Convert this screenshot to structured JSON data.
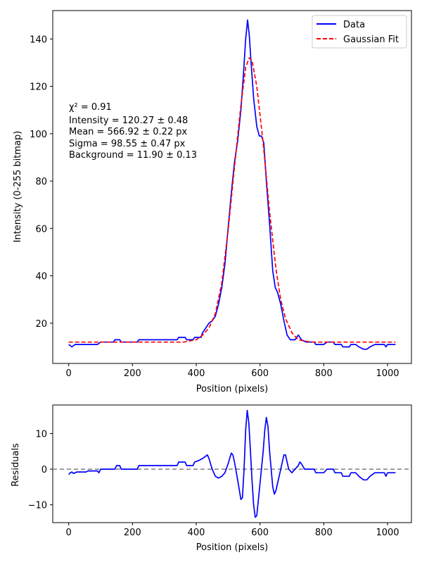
{
  "chart_data": [
    {
      "type": "line",
      "xlabel": "Position (pixels)",
      "ylabel": "Intensity (0-255 bitmap)",
      "xlim": [
        -50,
        1075
      ],
      "ylim": [
        3,
        152
      ],
      "x_ticks": [
        0,
        200,
        400,
        600,
        800,
        1000
      ],
      "y_ticks": [
        20,
        40,
        60,
        80,
        100,
        120,
        140
      ],
      "grid": false,
      "legend_position": "top-right",
      "annotation": {
        "chi2": "χ² = 0.91",
        "intensity": "Intensity = 120.27 ± 0.48",
        "mean": "Mean = 566.92 ± 0.22 px",
        "sigma": "Sigma = 98.55 ± 0.47 px",
        "background": "Background = 11.90 ± 0.13"
      },
      "series": [
        {
          "name": "Data",
          "color": "#0000ff",
          "style": "solid",
          "points": [
            [
              0,
              11
            ],
            [
              10,
              10
            ],
            [
              20,
              11
            ],
            [
              60,
              11
            ],
            [
              90,
              11
            ],
            [
              100,
              12
            ],
            [
              140,
              12
            ],
            [
              145,
              13
            ],
            [
              160,
              13
            ],
            [
              165,
              12
            ],
            [
              215,
              12
            ],
            [
              220,
              13
            ],
            [
              340,
              13
            ],
            [
              345,
              14
            ],
            [
              365,
              14
            ],
            [
              370,
              13
            ],
            [
              390,
              13
            ],
            [
              395,
              14
            ],
            [
              415,
              14
            ],
            [
              420,
              16
            ],
            [
              430,
              18
            ],
            [
              440,
              20
            ],
            [
              450,
              21
            ],
            [
              460,
              23
            ],
            [
              470,
              28
            ],
            [
              480,
              35
            ],
            [
              490,
              45
            ],
            [
              500,
              60
            ],
            [
              510,
              75
            ],
            [
              520,
              88
            ],
            [
              530,
              97
            ],
            [
              540,
              110
            ],
            [
              548,
              125
            ],
            [
              555,
              140
            ],
            [
              561,
              148
            ],
            [
              566,
              142
            ],
            [
              572,
              130
            ],
            [
              580,
              115
            ],
            [
              590,
              103
            ],
            [
              598,
              99
            ],
            [
              605,
              99
            ],
            [
              612,
              96
            ],
            [
              620,
              80
            ],
            [
              630,
              62
            ],
            [
              640,
              42
            ],
            [
              648,
              35
            ],
            [
              655,
              33
            ],
            [
              665,
              28
            ],
            [
              675,
              21
            ],
            [
              685,
              15
            ],
            [
              695,
              13
            ],
            [
              710,
              13
            ],
            [
              720,
              15
            ],
            [
              730,
              13
            ],
            [
              745,
              12
            ],
            [
              770,
              12
            ],
            [
              775,
              11
            ],
            [
              800,
              11
            ],
            [
              810,
              12
            ],
            [
              830,
              12
            ],
            [
              835,
              11
            ],
            [
              855,
              11
            ],
            [
              860,
              10
            ],
            [
              880,
              10
            ],
            [
              885,
              11
            ],
            [
              900,
              11
            ],
            [
              910,
              10
            ],
            [
              925,
              9
            ],
            [
              935,
              9
            ],
            [
              945,
              10
            ],
            [
              960,
              11
            ],
            [
              990,
              11
            ],
            [
              995,
              10
            ],
            [
              1000,
              11
            ],
            [
              1025,
              11
            ]
          ]
        },
        {
          "name": "Gaussian Fit",
          "color": "#ff0000",
          "style": "dashed",
          "points": [
            [
              0,
              12
            ],
            [
              360,
              12
            ],
            [
              400,
              13
            ],
            [
              420,
              15
            ],
            [
              440,
              18
            ],
            [
              460,
              24
            ],
            [
              480,
              37
            ],
            [
              500,
              59
            ],
            [
              520,
              86
            ],
            [
              540,
              112
            ],
            [
              555,
              128
            ],
            [
              566,
              132
            ],
            [
              575,
              131
            ],
            [
              590,
              120
            ],
            [
              610,
              96
            ],
            [
              630,
              67
            ],
            [
              650,
              43
            ],
            [
              665,
              30
            ],
            [
              680,
              22
            ],
            [
              700,
              16
            ],
            [
              720,
              13
            ],
            [
              760,
              12
            ],
            [
              1025,
              12
            ]
          ]
        }
      ]
    },
    {
      "type": "line",
      "xlabel": "Position (pixels)",
      "ylabel": "Residuals",
      "xlim": [
        -50,
        1075
      ],
      "ylim": [
        -15,
        18
      ],
      "x_ticks": [
        0,
        200,
        400,
        600,
        800,
        1000
      ],
      "y_ticks": [
        -10,
        0,
        10
      ],
      "grid": false,
      "reference_line": {
        "y": 0,
        "color": "#808080",
        "style": "dashed"
      },
      "series": [
        {
          "name": "Residuals",
          "color": "#0000ff",
          "style": "solid",
          "points": [
            [
              0,
              -1.5
            ],
            [
              5,
              -1
            ],
            [
              10,
              -0.8
            ],
            [
              15,
              -1.2
            ],
            [
              20,
              -1
            ],
            [
              25,
              -0.8
            ],
            [
              55,
              -0.8
            ],
            [
              60,
              -0.5
            ],
            [
              90,
              -0.5
            ],
            [
              95,
              -1
            ],
            [
              100,
              0
            ],
            [
              145,
              0
            ],
            [
              150,
              1
            ],
            [
              160,
              1
            ],
            [
              165,
              0
            ],
            [
              215,
              0
            ],
            [
              220,
              1
            ],
            [
              340,
              1
            ],
            [
              345,
              2
            ],
            [
              365,
              2
            ],
            [
              370,
              1
            ],
            [
              390,
              1
            ],
            [
              395,
              2
            ],
            [
              410,
              2.5
            ],
            [
              420,
              3
            ],
            [
              435,
              4
            ],
            [
              440,
              3
            ],
            [
              450,
              0
            ],
            [
              460,
              -2
            ],
            [
              470,
              -2.5
            ],
            [
              480,
              -2
            ],
            [
              490,
              -1
            ],
            [
              500,
              1.5
            ],
            [
              510,
              4.5
            ],
            [
              515,
              4
            ],
            [
              520,
              2
            ],
            [
              530,
              -3
            ],
            [
              540,
              -8.5
            ],
            [
              545,
              -8
            ],
            [
              550,
              0
            ],
            [
              555,
              11
            ],
            [
              560,
              16.5
            ],
            [
              565,
              13
            ],
            [
              570,
              5
            ],
            [
              575,
              -3
            ],
            [
              580,
              -10
            ],
            [
              585,
              -13.5
            ],
            [
              590,
              -13
            ],
            [
              600,
              -4
            ],
            [
              610,
              5
            ],
            [
              615,
              11
            ],
            [
              620,
              14.5
            ],
            [
              625,
              12
            ],
            [
              630,
              5
            ],
            [
              640,
              -5
            ],
            [
              645,
              -7
            ],
            [
              650,
              -6
            ],
            [
              660,
              -2
            ],
            [
              670,
              2
            ],
            [
              675,
              4
            ],
            [
              680,
              4
            ],
            [
              690,
              0
            ],
            [
              700,
              -1
            ],
            [
              710,
              0
            ],
            [
              720,
              1
            ],
            [
              725,
              2
            ],
            [
              730,
              1.5
            ],
            [
              740,
              0
            ],
            [
              770,
              0
            ],
            [
              775,
              -1
            ],
            [
              800,
              -1
            ],
            [
              810,
              0
            ],
            [
              830,
              0
            ],
            [
              835,
              -1
            ],
            [
              855,
              -1
            ],
            [
              860,
              -2
            ],
            [
              880,
              -2
            ],
            [
              885,
              -1
            ],
            [
              900,
              -1
            ],
            [
              910,
              -2
            ],
            [
              925,
              -3
            ],
            [
              935,
              -3
            ],
            [
              945,
              -2
            ],
            [
              960,
              -1
            ],
            [
              990,
              -1
            ],
            [
              995,
              -2
            ],
            [
              1000,
              -1
            ],
            [
              1025,
              -1
            ]
          ]
        }
      ]
    }
  ]
}
